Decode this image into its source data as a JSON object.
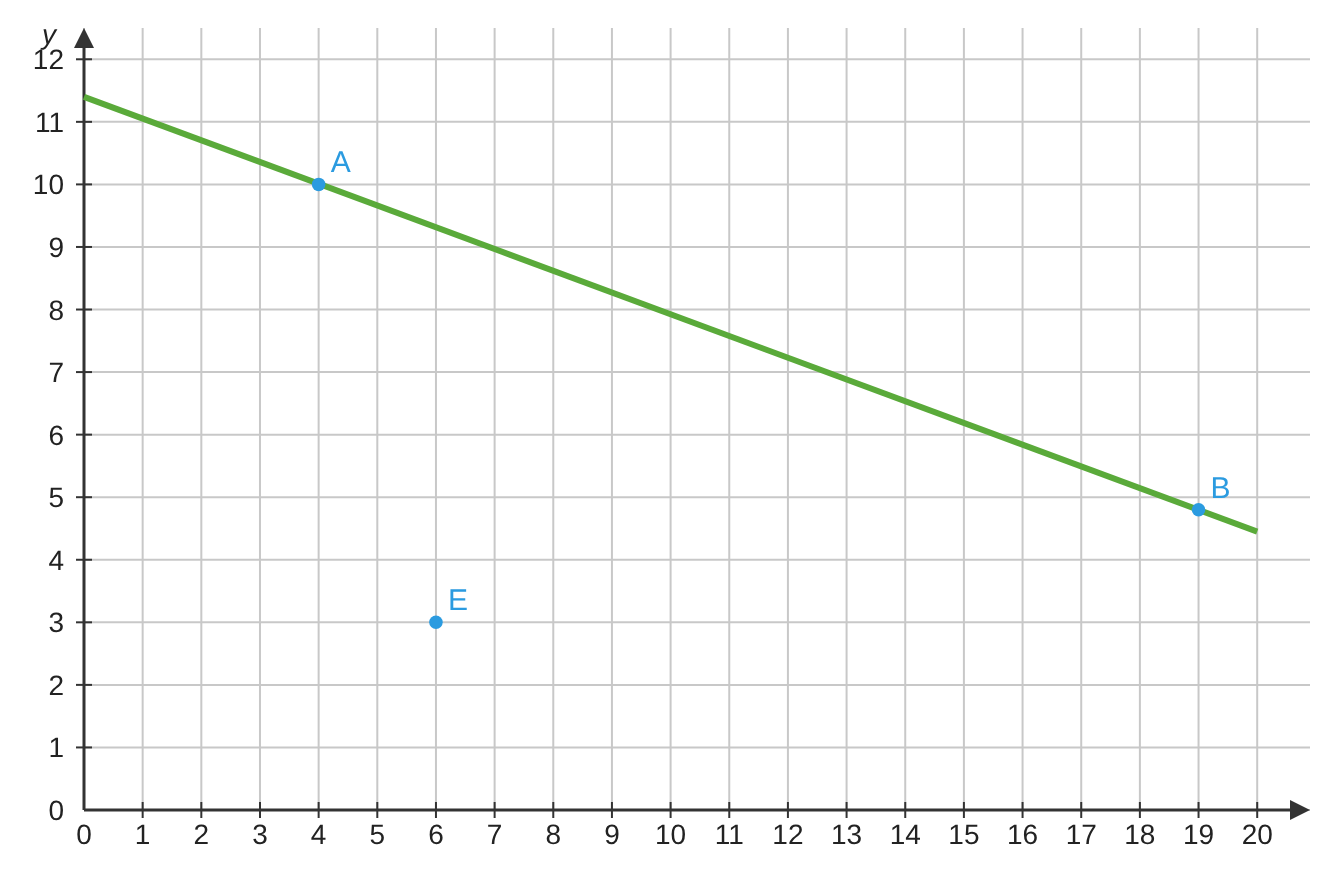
{
  "chart_data": {
    "type": "scatter",
    "ylabel": "y",
    "xlim": [
      0,
      20.9
    ],
    "ylim": [
      0,
      12.5
    ],
    "xticks": [
      0,
      1,
      2,
      3,
      4,
      5,
      6,
      7,
      8,
      9,
      10,
      11,
      12,
      13,
      14,
      15,
      16,
      17,
      18,
      19,
      20
    ],
    "yticks": [
      0,
      1,
      2,
      3,
      4,
      5,
      6,
      7,
      8,
      9,
      10,
      11,
      12
    ],
    "grid": true,
    "series": [
      {
        "type": "line",
        "color": "#5aaa3a",
        "x": [
          0,
          20
        ],
        "values": [
          11.4,
          4.45
        ]
      },
      {
        "marker": "circle",
        "color": "#2b9be0",
        "x": [
          4,
          6,
          19
        ],
        "values": [
          10,
          3,
          4.8
        ]
      }
    ],
    "annotations": [
      {
        "text": "A",
        "x": 4,
        "y": 10
      },
      {
        "text": "E",
        "x": 6,
        "y": 3
      },
      {
        "text": "B",
        "x": 19,
        "y": 4.8
      }
    ]
  }
}
